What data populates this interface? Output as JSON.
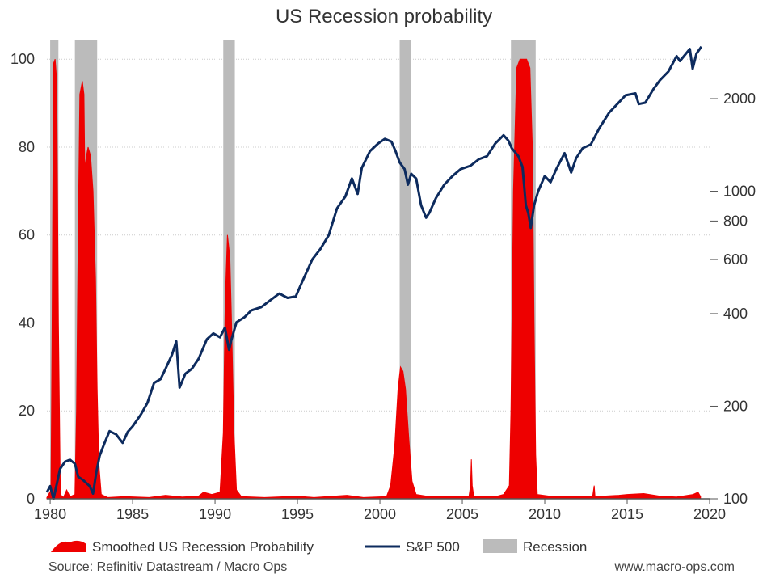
{
  "title": "US Recession probability",
  "source": "Source: Refinitiv Datastream / Macro Ops",
  "website": "www.macro-ops.com",
  "colors": {
    "probability": "#ee0000",
    "sp500": "#0d2b5e",
    "recession": "#bbbbbb",
    "grid": "#cccccc",
    "text": "#333333"
  },
  "chart_data": {
    "type": "line",
    "title": "US Recession probability",
    "xlim": [
      1979.8,
      2020
    ],
    "x_ticks": [
      1980,
      1985,
      1990,
      1995,
      2000,
      2005,
      2010,
      2015,
      2020
    ],
    "y_left": {
      "label": "",
      "lim": [
        0,
        105
      ],
      "ticks": [
        0,
        20,
        40,
        60,
        80,
        100
      ]
    },
    "y_right": {
      "label": "",
      "scale": "log",
      "lim": [
        100,
        3000
      ],
      "ticks": [
        100,
        200,
        400,
        600,
        800,
        1000,
        2000
      ]
    },
    "legend": [
      "Smoothed US Recession Probability",
      "S&P 500",
      "Recession"
    ],
    "legend_position": "bottom",
    "recessions": [
      {
        "start": 1980.0,
        "end": 1980.5
      },
      {
        "start": 1981.5,
        "end": 1982.85
      },
      {
        "start": 1990.5,
        "end": 1991.2
      },
      {
        "start": 2001.2,
        "end": 2001.9
      },
      {
        "start": 2007.95,
        "end": 2009.45
      }
    ],
    "series": [
      {
        "name": "Smoothed US Recession Probability",
        "axis": "left",
        "style": "area",
        "points": [
          [
            1979.8,
            0.3
          ],
          [
            1980.05,
            2
          ],
          [
            1980.12,
            40
          ],
          [
            1980.2,
            99
          ],
          [
            1980.3,
            100
          ],
          [
            1980.4,
            95
          ],
          [
            1980.5,
            40
          ],
          [
            1980.62,
            1
          ],
          [
            1980.8,
            0.3
          ],
          [
            1981.0,
            2
          ],
          [
            1981.2,
            0.5
          ],
          [
            1981.5,
            1
          ],
          [
            1981.6,
            20
          ],
          [
            1981.7,
            60
          ],
          [
            1981.8,
            92
          ],
          [
            1981.95,
            95
          ],
          [
            1982.05,
            92
          ],
          [
            1982.1,
            75
          ],
          [
            1982.2,
            78
          ],
          [
            1982.3,
            80
          ],
          [
            1982.45,
            78
          ],
          [
            1982.6,
            70
          ],
          [
            1982.75,
            50
          ],
          [
            1982.85,
            25
          ],
          [
            1982.95,
            8
          ],
          [
            1983.1,
            1
          ],
          [
            1983.5,
            0.3
          ],
          [
            1984.5,
            0.5
          ],
          [
            1986.0,
            0.3
          ],
          [
            1987.0,
            0.8
          ],
          [
            1988.0,
            0.4
          ],
          [
            1989.0,
            0.6
          ],
          [
            1989.3,
            1.5
          ],
          [
            1989.8,
            1
          ],
          [
            1990.3,
            1.5
          ],
          [
            1990.5,
            15
          ],
          [
            1990.62,
            45
          ],
          [
            1990.75,
            60
          ],
          [
            1990.9,
            55
          ],
          [
            1991.0,
            40
          ],
          [
            1991.15,
            15
          ],
          [
            1991.3,
            2
          ],
          [
            1991.6,
            0.5
          ],
          [
            1993.0,
            0.3
          ],
          [
            1995.0,
            0.6
          ],
          [
            1996.0,
            0.3
          ],
          [
            1998.0,
            0.8
          ],
          [
            1999.0,
            0.3
          ],
          [
            2000.4,
            0.5
          ],
          [
            2000.65,
            3
          ],
          [
            2000.9,
            12
          ],
          [
            2001.1,
            25
          ],
          [
            2001.25,
            30
          ],
          [
            2001.4,
            29
          ],
          [
            2001.55,
            25
          ],
          [
            2001.75,
            14
          ],
          [
            2001.95,
            4
          ],
          [
            2002.2,
            1
          ],
          [
            2003.0,
            0.5
          ],
          [
            2004.5,
            0.5
          ],
          [
            2005.4,
            0.5
          ],
          [
            2005.5,
            3
          ],
          [
            2005.55,
            9
          ],
          [
            2005.6,
            3
          ],
          [
            2005.7,
            0.5
          ],
          [
            2007.0,
            0.5
          ],
          [
            2007.5,
            1
          ],
          [
            2007.85,
            3
          ],
          [
            2007.95,
            20
          ],
          [
            2008.1,
            70
          ],
          [
            2008.3,
            98
          ],
          [
            2008.5,
            100
          ],
          [
            2008.9,
            100
          ],
          [
            2009.1,
            98
          ],
          [
            2009.25,
            80
          ],
          [
            2009.35,
            40
          ],
          [
            2009.45,
            10
          ],
          [
            2009.55,
            1
          ],
          [
            2010.5,
            0.5
          ],
          [
            2012.5,
            0.5
          ],
          [
            2012.9,
            0.5
          ],
          [
            2013.0,
            3
          ],
          [
            2013.05,
            0.5
          ],
          [
            2014.5,
            0.8
          ],
          [
            2015.0,
            1
          ],
          [
            2016.0,
            1.2
          ],
          [
            2017.0,
            0.6
          ],
          [
            2018.0,
            0.4
          ],
          [
            2019.0,
            1
          ],
          [
            2019.3,
            1.5
          ],
          [
            2019.45,
            0.5
          ]
        ]
      },
      {
        "name": "S&P 500",
        "axis": "right",
        "style": "line",
        "points": [
          [
            1979.8,
            105
          ],
          [
            1980.0,
            110
          ],
          [
            1980.2,
            100
          ],
          [
            1980.45,
            115
          ],
          [
            1980.6,
            125
          ],
          [
            1980.9,
            132
          ],
          [
            1981.2,
            134
          ],
          [
            1981.5,
            130
          ],
          [
            1981.7,
            118
          ],
          [
            1982.0,
            115
          ],
          [
            1982.4,
            110
          ],
          [
            1982.6,
            104
          ],
          [
            1982.8,
            122
          ],
          [
            1983.0,
            138
          ],
          [
            1983.3,
            152
          ],
          [
            1983.6,
            166
          ],
          [
            1984.0,
            162
          ],
          [
            1984.4,
            152
          ],
          [
            1984.7,
            165
          ],
          [
            1985.0,
            172
          ],
          [
            1985.5,
            188
          ],
          [
            1985.9,
            205
          ],
          [
            1986.3,
            238
          ],
          [
            1986.7,
            245
          ],
          [
            1987.0,
            265
          ],
          [
            1987.4,
            295
          ],
          [
            1987.65,
            325
          ],
          [
            1987.85,
            230
          ],
          [
            1988.2,
            255
          ],
          [
            1988.6,
            265
          ],
          [
            1989.0,
            285
          ],
          [
            1989.5,
            330
          ],
          [
            1989.9,
            345
          ],
          [
            1990.3,
            335
          ],
          [
            1990.6,
            360
          ],
          [
            1990.85,
            305
          ],
          [
            1991.0,
            330
          ],
          [
            1991.3,
            375
          ],
          [
            1991.8,
            390
          ],
          [
            1992.2,
            410
          ],
          [
            1992.8,
            420
          ],
          [
            1993.3,
            440
          ],
          [
            1993.9,
            465
          ],
          [
            1994.4,
            450
          ],
          [
            1994.9,
            455
          ],
          [
            1995.3,
            510
          ],
          [
            1995.9,
            600
          ],
          [
            1996.4,
            650
          ],
          [
            1996.9,
            720
          ],
          [
            1997.4,
            880
          ],
          [
            1997.9,
            960
          ],
          [
            1998.3,
            1100
          ],
          [
            1998.65,
            980
          ],
          [
            1998.9,
            1190
          ],
          [
            1999.4,
            1350
          ],
          [
            1999.9,
            1430
          ],
          [
            2000.3,
            1480
          ],
          [
            2000.7,
            1450
          ],
          [
            2000.95,
            1350
          ],
          [
            2001.2,
            1240
          ],
          [
            2001.5,
            1180
          ],
          [
            2001.7,
            1050
          ],
          [
            2001.9,
            1140
          ],
          [
            2002.2,
            1100
          ],
          [
            2002.5,
            900
          ],
          [
            2002.8,
            820
          ],
          [
            2003.0,
            850
          ],
          [
            2003.4,
            950
          ],
          [
            2003.9,
            1050
          ],
          [
            2004.4,
            1120
          ],
          [
            2004.9,
            1180
          ],
          [
            2005.5,
            1210
          ],
          [
            2006.0,
            1270
          ],
          [
            2006.5,
            1300
          ],
          [
            2007.0,
            1430
          ],
          [
            2007.5,
            1520
          ],
          [
            2007.8,
            1460
          ],
          [
            2008.0,
            1380
          ],
          [
            2008.4,
            1300
          ],
          [
            2008.65,
            1200
          ],
          [
            2008.85,
            900
          ],
          [
            2009.0,
            850
          ],
          [
            2009.15,
            760
          ],
          [
            2009.35,
            900
          ],
          [
            2009.6,
            1000
          ],
          [
            2010.0,
            1120
          ],
          [
            2010.35,
            1070
          ],
          [
            2010.7,
            1180
          ],
          [
            2011.2,
            1330
          ],
          [
            2011.6,
            1150
          ],
          [
            2011.9,
            1280
          ],
          [
            2012.3,
            1380
          ],
          [
            2012.8,
            1420
          ],
          [
            2013.3,
            1600
          ],
          [
            2013.9,
            1800
          ],
          [
            2014.4,
            1920
          ],
          [
            2014.9,
            2050
          ],
          [
            2015.5,
            2080
          ],
          [
            2015.7,
            1920
          ],
          [
            2016.1,
            1940
          ],
          [
            2016.6,
            2150
          ],
          [
            2017.0,
            2300
          ],
          [
            2017.5,
            2450
          ],
          [
            2018.0,
            2750
          ],
          [
            2018.2,
            2650
          ],
          [
            2018.8,
            2900
          ],
          [
            2018.97,
            2500
          ],
          [
            2019.2,
            2800
          ],
          [
            2019.5,
            2950
          ]
        ]
      }
    ]
  }
}
